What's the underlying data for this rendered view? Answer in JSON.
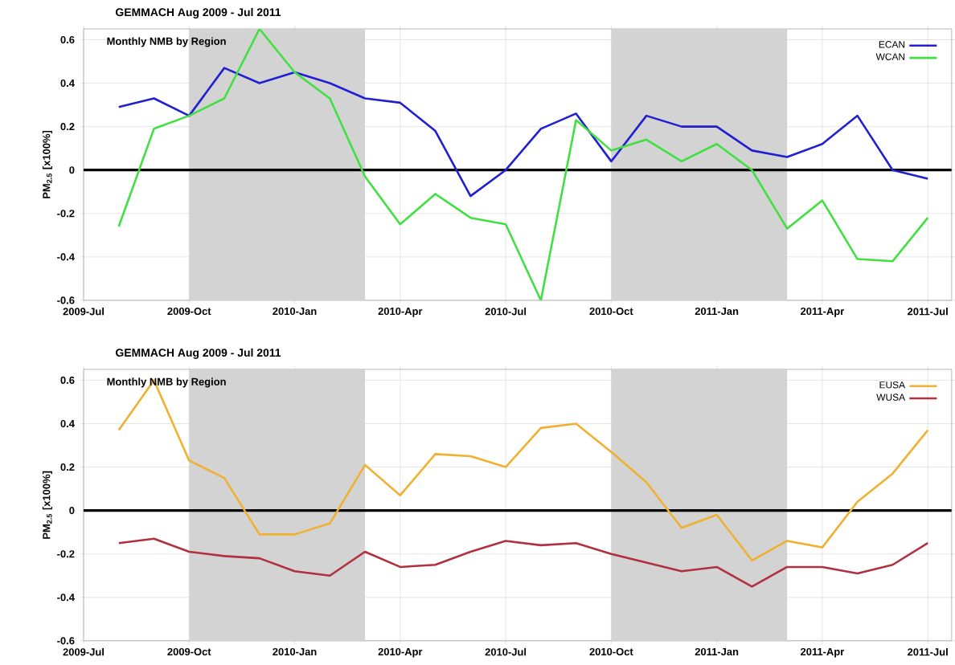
{
  "chart_data": [
    {
      "type": "line",
      "title": "GEMMACH Aug 2009 - Jul 2011",
      "subtitle": "Monthly NMB by Region",
      "ylabel": "PM$_{2.5}$  [x100%]",
      "x": [
        "2009-08",
        "2009-09",
        "2009-10",
        "2009-11",
        "2009-12",
        "2010-01",
        "2010-02",
        "2010-03",
        "2010-04",
        "2010-05",
        "2010-06",
        "2010-07",
        "2010-08",
        "2010-09",
        "2010-10",
        "2010-11",
        "2010-12",
        "2011-01",
        "2011-02",
        "2011-03",
        "2011-04",
        "2011-05",
        "2011-06",
        "2011-07"
      ],
      "series": [
        {
          "name": "ECAN",
          "color": "#2020d0",
          "values": [
            0.29,
            0.33,
            0.25,
            0.47,
            0.4,
            0.45,
            0.4,
            0.33,
            0.31,
            0.18,
            -0.12,
            0.0,
            0.19,
            0.26,
            0.04,
            0.25,
            0.2,
            0.2,
            0.09,
            0.06,
            0.12,
            0.25,
            0.0,
            -0.04
          ]
        },
        {
          "name": "WCAN",
          "color": "#40e040",
          "values": [
            -0.26,
            0.19,
            0.25,
            0.33,
            0.65,
            0.45,
            0.33,
            -0.03,
            -0.25,
            -0.11,
            -0.22,
            -0.25,
            -0.6,
            0.23,
            0.09,
            0.14,
            0.04,
            0.12,
            0.0,
            -0.27,
            -0.14,
            -0.41,
            -0.42,
            -0.22
          ]
        }
      ],
      "xlim": [
        "2009-07",
        "2011-07-22"
      ],
      "ylim": [
        -0.6,
        0.65
      ],
      "xticks": [
        {
          "value": "2009-07",
          "label": "2009-Jul"
        },
        {
          "value": "2009-10",
          "label": "2009-Oct"
        },
        {
          "value": "2010-01",
          "label": "2010-Jan"
        },
        {
          "value": "2010-04",
          "label": "2010-Apr"
        },
        {
          "value": "2010-07",
          "label": "2010-Jul"
        },
        {
          "value": "2010-10",
          "label": "2010-Oct"
        },
        {
          "value": "2011-01",
          "label": "2011-Jan"
        },
        {
          "value": "2011-04",
          "label": "2011-Apr"
        },
        {
          "value": "2011-07",
          "label": "2011-Jul"
        }
      ],
      "yticks": [
        -0.6,
        -0.4,
        -0.2,
        0,
        0.2,
        0.4,
        0.6
      ],
      "ref_lines": [
        {
          "axis": "y",
          "value": 0,
          "color": "#000000"
        }
      ],
      "bands": [
        {
          "axis": "x",
          "from": "2009-10",
          "to": "2010-03",
          "color": "#d3d3d3"
        },
        {
          "axis": "x",
          "from": "2010-10",
          "to": "2011-03",
          "color": "#d3d3d3"
        }
      ],
      "grid": true,
      "legend": "top right",
      "marker": "none"
    },
    {
      "type": "line",
      "title": "GEMMACH Aug 2009 - Jul 2011",
      "subtitle": "Monthly NMB by Region",
      "ylabel": "PM$_{2.5}$  [x100%]",
      "x": [
        "2009-08",
        "2009-09",
        "2009-10",
        "2009-11",
        "2009-12",
        "2010-01",
        "2010-02",
        "2010-03",
        "2010-04",
        "2010-05",
        "2010-06",
        "2010-07",
        "2010-08",
        "2010-09",
        "2010-10",
        "2010-11",
        "2010-12",
        "2011-01",
        "2011-02",
        "2011-03",
        "2011-04",
        "2011-05",
        "2011-06",
        "2011-07"
      ],
      "series": [
        {
          "name": "EUSA",
          "color": "#f0b030",
          "values": [
            0.37,
            0.6,
            0.23,
            0.15,
            -0.11,
            -0.11,
            -0.06,
            0.21,
            0.07,
            0.26,
            0.25,
            0.2,
            0.38,
            0.4,
            0.27,
            0.13,
            -0.08,
            -0.02,
            -0.23,
            -0.14,
            -0.17,
            0.04,
            0.17,
            0.37
          ]
        },
        {
          "name": "WUSA",
          "color": "#b03040",
          "values": [
            -0.15,
            -0.13,
            -0.19,
            -0.21,
            -0.22,
            -0.28,
            -0.3,
            -0.19,
            -0.26,
            -0.25,
            -0.19,
            -0.14,
            -0.16,
            -0.15,
            -0.2,
            -0.24,
            -0.28,
            -0.26,
            -0.35,
            -0.26,
            -0.26,
            -0.29,
            -0.25,
            -0.15
          ]
        }
      ],
      "xlim": [
        "2009-07",
        "2011-07-22"
      ],
      "ylim": [
        -0.6,
        0.65
      ],
      "xticks": [
        {
          "value": "2009-07",
          "label": "2009-Jul"
        },
        {
          "value": "2009-10",
          "label": "2009-Oct"
        },
        {
          "value": "2010-01",
          "label": "2010-Jan"
        },
        {
          "value": "2010-04",
          "label": "2010-Apr"
        },
        {
          "value": "2010-07",
          "label": "2010-Jul"
        },
        {
          "value": "2010-10",
          "label": "2010-Oct"
        },
        {
          "value": "2011-01",
          "label": "2011-Jan"
        },
        {
          "value": "2011-04",
          "label": "2011-Apr"
        },
        {
          "value": "2011-07",
          "label": "2011-Jul"
        }
      ],
      "yticks": [
        -0.6,
        -0.4,
        -0.2,
        0,
        0.2,
        0.4,
        0.6
      ],
      "ref_lines": [
        {
          "axis": "y",
          "value": 0,
          "color": "#000000"
        }
      ],
      "bands": [
        {
          "axis": "x",
          "from": "2009-10",
          "to": "2010-03",
          "color": "#d3d3d3"
        },
        {
          "axis": "x",
          "from": "2010-10",
          "to": "2011-03",
          "color": "#d3d3d3"
        }
      ],
      "grid": true,
      "legend": "top right",
      "marker": "none"
    }
  ]
}
